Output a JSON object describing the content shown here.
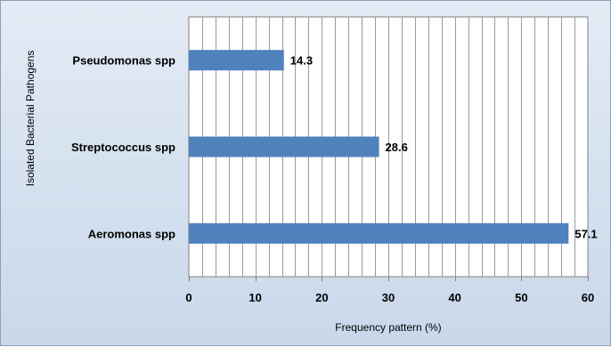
{
  "chart_data": {
    "type": "bar",
    "orientation": "horizontal",
    "categories": [
      "Pseudomonas spp",
      "Streptococcus spp",
      "Aeromonas  spp"
    ],
    "values": [
      14.3,
      28.6,
      57.1
    ],
    "data_labels": [
      "14.3",
      "28.6",
      "57.1"
    ],
    "title": "",
    "xlabel": "Frequency pattern (%)",
    "ylabel": "Isolated Bacterial Pathogens",
    "xlim": [
      0,
      60
    ],
    "xticks": [
      0,
      10,
      20,
      30,
      40,
      50,
      60
    ],
    "x_minor_step": 2,
    "grid": "vertical",
    "legend": "none",
    "bar_color": "#4f81bd",
    "plot_background": "#ffffff",
    "frame_background": "#d6e2f0"
  }
}
